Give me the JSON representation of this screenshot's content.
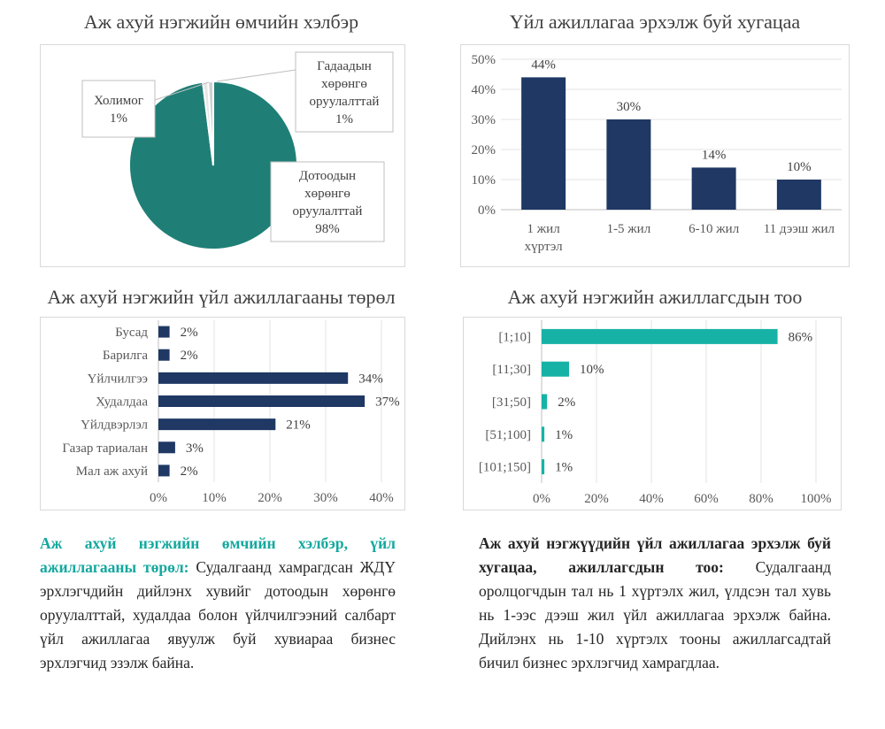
{
  "colors": {
    "teal_pie": "#1f7f76",
    "navy": "#1f3864",
    "teal_bar": "#17b2a6",
    "lead_teal": "#13a89e"
  },
  "chart_data": [
    {
      "id": "ownership",
      "type": "pie",
      "title": "Аж ахуй нэгжийн өмчийн хэлбэр",
      "slices": [
        {
          "label_lines": [
            "Дотоодын",
            "хөрөнгө",
            "оруулалттай",
            "98%"
          ],
          "value": 98
        },
        {
          "label_lines": [
            "Гадаадын",
            "хөрөнгө",
            "оруулалттай",
            "1%"
          ],
          "value": 1
        },
        {
          "label_lines": [
            "Холимог",
            "1%"
          ],
          "value": 1
        }
      ]
    },
    {
      "id": "duration",
      "type": "bar",
      "title": "Үйл ажиллагаа эрхэлж буй хугацаа",
      "categories": [
        [
          "1 жил",
          "хүртэл"
        ],
        [
          "1-5 жил"
        ],
        [
          "6-10 жил"
        ],
        [
          "11 дээш жил"
        ]
      ],
      "values": [
        44,
        30,
        14,
        10
      ],
      "data_labels": [
        "44%",
        "30%",
        "14%",
        "10%"
      ],
      "ylim": [
        0,
        50
      ],
      "yticks": [
        "0%",
        "10%",
        "20%",
        "30%",
        "40%",
        "50%"
      ]
    },
    {
      "id": "activity",
      "type": "bar-horizontal",
      "title": "Аж ахуй нэгжийн үйл ажиллагааны төрөл",
      "categories": [
        "Бусад",
        "Барилга",
        "Үйлчилгээ",
        "Худалдаа",
        "Үйлдвэрлэл",
        "Газар тариалан",
        "Мал аж ахуй"
      ],
      "values": [
        2,
        2,
        34,
        37,
        21,
        3,
        2
      ],
      "data_labels": [
        "2%",
        "2%",
        "34%",
        "37%",
        "21%",
        "3%",
        "2%"
      ],
      "xlim": [
        0,
        40
      ],
      "xticks": [
        "0%",
        "10%",
        "20%",
        "30%",
        "40%"
      ]
    },
    {
      "id": "employees",
      "type": "bar-horizontal",
      "title": "Аж ахуй нэгжийн ажиллагсдын тоо",
      "categories": [
        "[1;10]",
        "[11;30]",
        "[31;50]",
        "[51;100]",
        "[101;150]"
      ],
      "values": [
        86,
        10,
        2,
        1,
        1
      ],
      "data_labels": [
        "86%",
        "10%",
        "2%",
        "1%",
        "1%"
      ],
      "xlim": [
        0,
        100
      ],
      "xticks": [
        "0%",
        "20%",
        "40%",
        "60%",
        "80%",
        "100%"
      ]
    }
  ],
  "text": {
    "left_lead": "Аж ахуй нэгжийн өмчийн хэлбэр, үйл ажиллагааны төрөл:",
    "left_body": " Судалгаанд хамрагдсан ЖДҮ эрхлэгчдийн дийлэнх хувийг дотоодын хөрөнгө оруулалттай, худалдаа болон үйлчилгээний салбарт үйл ажиллагаа явуулж буй хувиараа бизнес эрхлэгчид эзэлж байна.",
    "right_lead": "Аж ахуй нэгжүүдийн үйл ажиллагаа эрхэлж буй хугацаа, ажиллагсдын тоо:",
    "right_body": " Судалгаанд оролцогчдын тал нь 1 хүртэлх жил, үлдсэн тал хувь нь 1-ээс дээш жил үйл ажиллагаа эрхэлж байна. Дийлэнх нь 1-10 хүртэлх тооны ажиллагсадтай бичил бизнес эрхлэгчид хамрагдлаа."
  }
}
